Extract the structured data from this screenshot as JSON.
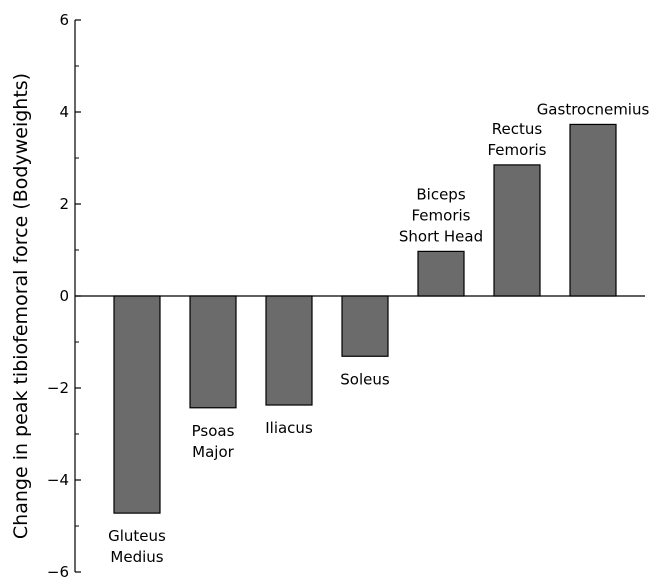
{
  "chart_data": {
    "type": "bar",
    "title": "",
    "xlabel": "",
    "ylabel": "Change in peak tibiofemoral force (Bodyweights)",
    "ylim": [
      -6,
      6
    ],
    "yticks": [
      -6,
      -4,
      -2,
      0,
      2,
      4,
      6
    ],
    "ytick_labels": [
      "−6",
      "−4",
      "−2",
      "0",
      "2",
      "4",
      "6"
    ],
    "grid": false,
    "legend": "none",
    "bar_color": "#6b6b6b",
    "categories": [
      "Gluteus Medius",
      "Psoas Major",
      "Iliacus",
      "Soleus",
      "Biceps Femoris Short Head",
      "Rectus Femoris",
      "Gastrocnemius"
    ],
    "category_labels": [
      [
        "Gluteus",
        "Medius"
      ],
      [
        "Psoas",
        "Major"
      ],
      [
        "Iliacus"
      ],
      [
        "Soleus"
      ],
      [
        "Biceps",
        "Femoris",
        "Short Head"
      ],
      [
        "Rectus",
        "Femoris"
      ],
      [
        "Gastrocnemius"
      ]
    ],
    "values": [
      -4.72,
      -2.43,
      -2.37,
      -1.31,
      0.97,
      2.85,
      3.73
    ]
  }
}
